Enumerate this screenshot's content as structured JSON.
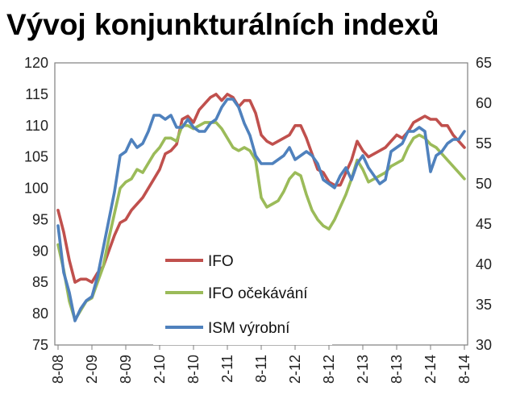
{
  "chart_data": {
    "type": "line",
    "title": "Vývoj konjunkturálních indexů",
    "xlabel": "",
    "ylabel": "",
    "x": [
      "8-08",
      "9-08",
      "10-08",
      "11-08",
      "12-08",
      "1-09",
      "2-09",
      "3-09",
      "4-09",
      "5-09",
      "6-09",
      "7-09",
      "8-09",
      "9-09",
      "10-09",
      "11-09",
      "12-09",
      "1-10",
      "2-10",
      "3-10",
      "4-10",
      "5-10",
      "6-10",
      "7-10",
      "8-10",
      "9-10",
      "10-10",
      "11-10",
      "12-10",
      "1-11",
      "2-11",
      "3-11",
      "4-11",
      "5-11",
      "6-11",
      "7-11",
      "8-11",
      "9-11",
      "10-11",
      "11-11",
      "12-11",
      "1-12",
      "2-12",
      "3-12",
      "4-12",
      "5-12",
      "6-12",
      "7-12",
      "8-12",
      "9-12",
      "10-12",
      "11-12",
      "12-12",
      "1-13",
      "2-13",
      "3-13",
      "4-13",
      "5-13",
      "6-13",
      "7-13",
      "8-13",
      "9-13",
      "10-13",
      "11-13",
      "12-13",
      "1-14",
      "2-14",
      "3-14",
      "4-14",
      "5-14",
      "6-14",
      "7-14",
      "8-14"
    ],
    "x_tick_labels": [
      "8-08",
      "2-09",
      "8-09",
      "2-10",
      "8-10",
      "2-11",
      "8-11",
      "2-12",
      "8-12",
      "2-13",
      "8-13",
      "2-14",
      "8-14"
    ],
    "y_left": {
      "ylim": [
        75,
        120
      ],
      "ticks": [
        75,
        80,
        85,
        90,
        95,
        100,
        105,
        110,
        115,
        120
      ]
    },
    "y_right": {
      "ylim": [
        30,
        65
      ],
      "ticks": [
        30,
        35,
        40,
        45,
        50,
        55,
        60,
        65
      ]
    },
    "grid": false,
    "legend_position": "bottom-center",
    "series": [
      {
        "name": "IFO",
        "axis": "left",
        "color": "#c0504d",
        "values": [
          96.5,
          93.0,
          88.5,
          85.0,
          85.5,
          85.5,
          85.0,
          86.5,
          87.5,
          90.0,
          92.5,
          94.5,
          95.0,
          96.5,
          97.5,
          98.5,
          100.0,
          101.5,
          103.0,
          105.5,
          106.0,
          107.0,
          111.0,
          111.5,
          110.5,
          112.5,
          113.5,
          114.5,
          115.0,
          114.0,
          115.0,
          114.5,
          113.0,
          114.0,
          114.0,
          112.0,
          108.5,
          107.5,
          107.0,
          107.5,
          108.0,
          108.5,
          110.0,
          110.0,
          108.0,
          105.5,
          103.0,
          102.5,
          101.0,
          100.5,
          100.5,
          102.5,
          104.5,
          107.5,
          106.0,
          105.0,
          105.5,
          106.0,
          106.5,
          107.5,
          108.5,
          108.0,
          109.0,
          110.5,
          111.0,
          111.5,
          111.0,
          111.0,
          110.0,
          110.0,
          108.5,
          107.5,
          106.5
        ]
      },
      {
        "name": "IFO očekávání",
        "axis": "left",
        "color": "#9bbb59",
        "values": [
          91.0,
          87.0,
          82.0,
          79.0,
          80.5,
          82.0,
          82.5,
          85.0,
          87.5,
          92.0,
          96.0,
          100.0,
          101.0,
          101.5,
          103.0,
          102.5,
          104.0,
          105.5,
          106.5,
          108.0,
          108.0,
          107.5,
          110.0,
          110.0,
          109.5,
          110.0,
          110.5,
          110.5,
          110.5,
          109.5,
          108.0,
          106.5,
          106.0,
          106.5,
          106.0,
          104.5,
          98.5,
          97.0,
          97.5,
          98.0,
          99.5,
          101.5,
          102.5,
          102.0,
          99.0,
          96.5,
          95.0,
          94.0,
          93.5,
          95.0,
          97.0,
          99.0,
          101.5,
          104.5,
          103.0,
          101.0,
          101.5,
          102.0,
          102.5,
          103.5,
          104.0,
          104.5,
          106.5,
          108.0,
          108.5,
          108.0,
          107.0,
          106.5,
          105.5,
          104.5,
          103.5,
          102.5,
          101.5
        ]
      },
      {
        "name": "ISM výrobní",
        "axis": "right",
        "color": "#4f81bd",
        "values": [
          44.8,
          39.0,
          36.5,
          33.0,
          34.5,
          35.5,
          36.0,
          38.5,
          42.0,
          45.5,
          49.0,
          53.5,
          54.0,
          55.5,
          54.5,
          55.0,
          56.5,
          58.5,
          58.5,
          58.0,
          58.5,
          57.0,
          57.0,
          58.0,
          57.0,
          56.5,
          56.5,
          57.5,
          58.0,
          59.5,
          60.5,
          60.5,
          59.5,
          57.5,
          56.0,
          53.5,
          52.5,
          52.5,
          52.5,
          53.0,
          53.5,
          54.5,
          53.0,
          53.5,
          54.0,
          53.5,
          52.5,
          50.5,
          50.0,
          49.5,
          51.0,
          52.0,
          50.5,
          52.5,
          53.5,
          52.0,
          51.0,
          50.0,
          50.5,
          54.0,
          54.5,
          55.0,
          56.5,
          56.5,
          57.0,
          56.5,
          51.5,
          53.5,
          54.0,
          55.0,
          55.5,
          55.5,
          56.5
        ]
      }
    ]
  }
}
